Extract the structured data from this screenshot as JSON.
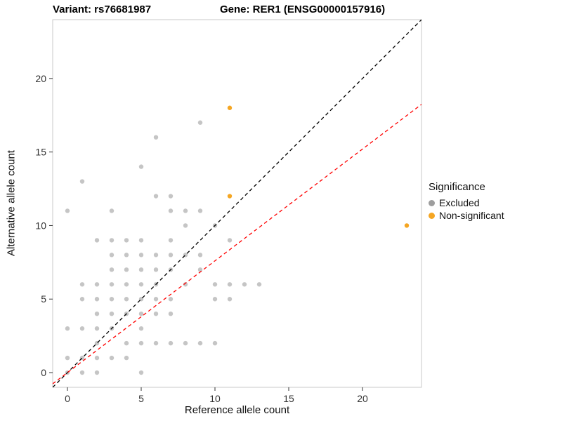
{
  "titles": {
    "variant": "Variant: rs76681987",
    "gene": "Gene: RER1 (ENSG00000157916)"
  },
  "legend": {
    "title": "Significance"
  },
  "chart_data": {
    "type": "scatter",
    "title": "Variant: rs76681987 — Gene: RER1 (ENSG00000157916)",
    "xlabel": "Reference allele count",
    "ylabel": "Alternative allele count",
    "xlim": [
      -1,
      24
    ],
    "ylim": [
      -1,
      24
    ],
    "x_ticks": [
      0,
      5,
      10,
      15,
      20
    ],
    "y_ticks": [
      0,
      5,
      10,
      15,
      20
    ],
    "grid": false,
    "legend_position": "right",
    "panel_border_color": "#c9c9c9",
    "tick_color": "#333333",
    "series": [
      {
        "name": "Excluded",
        "color": "#9e9e9e",
        "opacity": 0.6,
        "points": [
          [
            0,
            0
          ],
          [
            0,
            1
          ],
          [
            0,
            3
          ],
          [
            0,
            11
          ],
          [
            1,
            0
          ],
          [
            1,
            1
          ],
          [
            1,
            3
          ],
          [
            1,
            5
          ],
          [
            1,
            6
          ],
          [
            1,
            13
          ],
          [
            2,
            0
          ],
          [
            2,
            1
          ],
          [
            2,
            2
          ],
          [
            2,
            3
          ],
          [
            2,
            4
          ],
          [
            2,
            5
          ],
          [
            2,
            6
          ],
          [
            2,
            9
          ],
          [
            3,
            1
          ],
          [
            3,
            3
          ],
          [
            3,
            4
          ],
          [
            3,
            5
          ],
          [
            3,
            6
          ],
          [
            3,
            7
          ],
          [
            3,
            8
          ],
          [
            3,
            9
          ],
          [
            3,
            11
          ],
          [
            4,
            1
          ],
          [
            4,
            2
          ],
          [
            4,
            4
          ],
          [
            4,
            5
          ],
          [
            4,
            6
          ],
          [
            4,
            7
          ],
          [
            4,
            8
          ],
          [
            4,
            9
          ],
          [
            5,
            0
          ],
          [
            5,
            2
          ],
          [
            5,
            3
          ],
          [
            5,
            4
          ],
          [
            5,
            5
          ],
          [
            5,
            6
          ],
          [
            5,
            7
          ],
          [
            5,
            8
          ],
          [
            5,
            9
          ],
          [
            5,
            14
          ],
          [
            6,
            2
          ],
          [
            6,
            4
          ],
          [
            6,
            5
          ],
          [
            6,
            6
          ],
          [
            6,
            7
          ],
          [
            6,
            8
          ],
          [
            6,
            12
          ],
          [
            6,
            16
          ],
          [
            7,
            2
          ],
          [
            7,
            4
          ],
          [
            7,
            5
          ],
          [
            7,
            7
          ],
          [
            7,
            8
          ],
          [
            7,
            9
          ],
          [
            7,
            11
          ],
          [
            7,
            12
          ],
          [
            8,
            2
          ],
          [
            8,
            6
          ],
          [
            8,
            8
          ],
          [
            8,
            10
          ],
          [
            8,
            11
          ],
          [
            9,
            2
          ],
          [
            9,
            7
          ],
          [
            9,
            8
          ],
          [
            9,
            11
          ],
          [
            9,
            17
          ],
          [
            10,
            2
          ],
          [
            10,
            5
          ],
          [
            10,
            6
          ],
          [
            10,
            10
          ],
          [
            11,
            5
          ],
          [
            11,
            6
          ],
          [
            11,
            9
          ],
          [
            12,
            6
          ],
          [
            13,
            6
          ]
        ]
      },
      {
        "name": "Non-significant",
        "color": "#f5a623",
        "opacity": 1,
        "points": [
          [
            11,
            12
          ],
          [
            11,
            18
          ],
          [
            23,
            10
          ]
        ]
      }
    ],
    "lines": [
      {
        "name": "identity-line",
        "color": "#000000",
        "slope": 1,
        "intercept": 0,
        "dashed": true
      },
      {
        "name": "fit-line",
        "color": "#ff0000",
        "slope": 0.76,
        "intercept": 0,
        "dashed": true
      }
    ]
  }
}
